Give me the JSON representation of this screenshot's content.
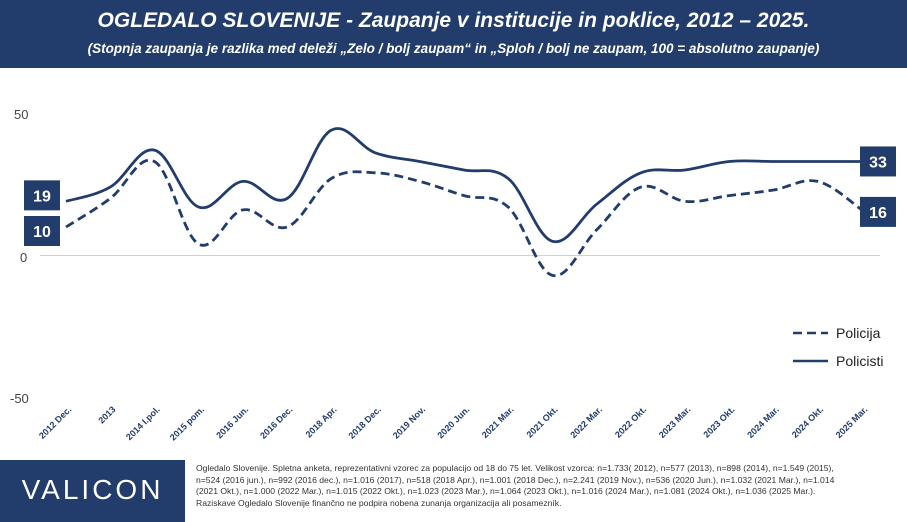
{
  "header": {
    "title": "OGLEDALO SLOVENIJE - Zaupanje v institucije in poklice, 2012 – 2025.",
    "subtitle": "(Stopnja zaupanja je razlika med deleži „Zelo / bolj zaupam“ in „Sploh / bolj ne zaupam, 100 = absolutno zaupanje)"
  },
  "colors": {
    "navy": "#223c6c",
    "line": "#223c6c",
    "zero_line": "#d0d0d0"
  },
  "chart_data": {
    "type": "line",
    "categories": [
      "2012 Dec.",
      "2013",
      "2014 I.pol.",
      "2015 pom.",
      "2016 Jun.",
      "2016 Dec.",
      "2018 Apr.",
      "2018 Dec.",
      "2019 Nov.",
      "2020 Jun.",
      "2021 Mar.",
      "2021 Okt.",
      "2022 Mar.",
      "2022 Okt.",
      "2023 Mar.",
      "2023 Okt.",
      "2024 Mar.",
      "2024 Okt.",
      "2025 Mar."
    ],
    "y_tick_labels": [
      "50",
      "0",
      "-50"
    ],
    "ylim": [
      -50,
      50
    ],
    "series": [
      {
        "name": "Policija",
        "dash": true,
        "values": [
          10,
          20,
          33,
          4,
          16,
          10,
          27,
          29,
          26,
          21,
          17,
          -7,
          9,
          24,
          19,
          21,
          23,
          26,
          16
        ]
      },
      {
        "name": "Policisti",
        "dash": false,
        "values": [
          19,
          24,
          37,
          17,
          26,
          20,
          44,
          36,
          33,
          30,
          27,
          5,
          18,
          29,
          30,
          33,
          33,
          33,
          33
        ]
      }
    ],
    "end_labels": {
      "policisti_start": "19",
      "policija_start": "10",
      "policisti_end": "33",
      "policija_end": "16"
    },
    "legend": {
      "placement": "right",
      "items": [
        "Policija",
        "Policisti"
      ]
    },
    "grid": false
  },
  "footer": {
    "logo": "VALICON",
    "note_lines": [
      "Ogledalo Slovenije. Spletna anketa, reprezentativni vzorec za populacijo od 18 do 75 let. Velikost vzorca: n=1.733( 2012), n=577 (2013), n=898 (2014), n=1.549 (2015),",
      "n=524 (2016 jun.), n=992 (2016 dec.), n=1.016 (2017), n=518 (2018 Apr.), n=1.001 (2018 Dec.), n=2.241 (2019 Nov.), n=536 (2020 Jun.), n=1.032 (2021 Mar.), n=1.014",
      "(2021 Okt.), n=1.000 (2022 Mar.), n=1.015 (2022 Okt.), n=1.023 (2023 Mar.), n=1.064 (2023 Okt.), n=1.016 (2024 Mar.), n=1.081 (2024 Okt.), n=1.036 (2025 Mar.).",
      "Raziskave Ogledalo Slovenije finančno ne podpira nobena zunanja organizacija ali posamezník."
    ]
  }
}
